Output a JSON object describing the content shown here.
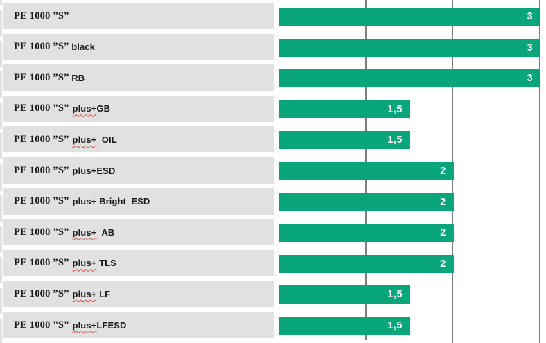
{
  "chart": {
    "colors": {
      "bar": "#09a57b",
      "label_box": "#e1e1e1",
      "gridline": "#7f7f7f",
      "label_text": "#1a1a1a",
      "value_text": "#ffffff",
      "spellcheck_squiggle": "#e03c31"
    },
    "rows": [
      {
        "prefix": "PE 1000 ”S”",
        "plus": "",
        "rest": "",
        "misspelled": false,
        "value": 3,
        "value_label": "3"
      },
      {
        "prefix": "PE 1000 ”S”",
        "plus": "",
        "rest": " black",
        "misspelled": false,
        "value": 3,
        "value_label": "3"
      },
      {
        "prefix": "PE 1000 ”S”",
        "plus": "",
        "rest": " RB",
        "misspelled": false,
        "value": 3,
        "value_label": "3"
      },
      {
        "prefix": "PE 1000 ”S”",
        "plus": "plus+",
        "rest": "GB",
        "misspelled": true,
        "value": 1.5,
        "value_label": "1,5"
      },
      {
        "prefix": "PE 1000 ”S”",
        "plus": "plus+",
        "rest": "  OIL",
        "misspelled": true,
        "value": 1.5,
        "value_label": "1,5"
      },
      {
        "prefix": "PE 1000 ”S”",
        "plus": "plus+",
        "rest": "ESD",
        "misspelled": false,
        "value": 2,
        "value_label": "2"
      },
      {
        "prefix": "PE 1000 ”S”",
        "plus": "plus+",
        "rest": " Bright  ESD",
        "misspelled": false,
        "value": 2,
        "value_label": "2"
      },
      {
        "prefix": "PE 1000 ”S”",
        "plus": "plus+",
        "rest": "  AB",
        "misspelled": true,
        "value": 2,
        "value_label": "2"
      },
      {
        "prefix": "PE 1000 ”S”",
        "plus": "plus+",
        "rest": " TLS",
        "misspelled": true,
        "value": 2,
        "value_label": "2"
      },
      {
        "prefix": "PE 1000 ”S”",
        "plus": "plus+",
        "rest": " LF",
        "misspelled": true,
        "value": 1.5,
        "value_label": "1,5"
      },
      {
        "prefix": "PE 1000 ”S”",
        "plus": "plus+",
        "rest": "LFESD",
        "misspelled": true,
        "value": 1.5,
        "value_label": "1,5"
      }
    ]
  },
  "chart_data": {
    "type": "bar",
    "orientation": "horizontal",
    "title": "",
    "xlabel": "",
    "ylabel": "",
    "categories": [
      "PE 1000 ”S”",
      "PE 1000 ”S” black",
      "PE 1000 ”S” RB",
      "PE 1000 ”S” plus+GB",
      "PE 1000 ”S” plus+ OIL",
      "PE 1000 ”S” plus+ESD",
      "PE 1000 ”S” plus+ Bright ESD",
      "PE 1000 ”S” plus+ AB",
      "PE 1000 ”S” plus+ TLS",
      "PE 1000 ”S” plus+ LF",
      "PE 1000 ”S” plus+LFESD"
    ],
    "values": [
      3,
      3,
      3,
      1.5,
      1.5,
      2,
      2,
      2,
      2,
      1.5,
      1.5
    ],
    "value_labels": [
      "3",
      "3",
      "3",
      "1,5",
      "1,5",
      "2",
      "2",
      "2",
      "2",
      "1,5",
      "1,5"
    ],
    "xlim": [
      0,
      3
    ],
    "gridlines_x": [
      1,
      2,
      3
    ],
    "grid": true,
    "legend": false,
    "bar_color": "#09a57b"
  }
}
